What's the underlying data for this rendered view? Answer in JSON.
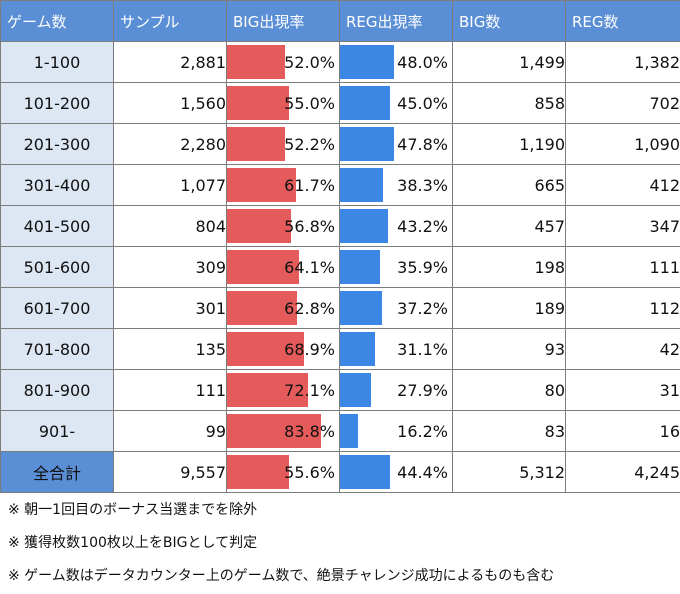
{
  "headers": [
    "ゲーム数",
    "サンプル",
    "BIG出現率",
    "REG出現率",
    "BIG数",
    "REG数"
  ],
  "colors": {
    "header_bg": "#5a8fd6",
    "range_bg": "#dde6f3",
    "big_bar": "#e55b5b",
    "reg_bar": "#3c86e4"
  },
  "rows": [
    {
      "range": "1-100",
      "samples": "2,881",
      "big_rate": "52.0%",
      "reg_rate": "48.0%",
      "big_count": "1,499",
      "reg_count": "1,382",
      "big_pct": 52.0,
      "reg_pct": 48.0
    },
    {
      "range": "101-200",
      "samples": "1,560",
      "big_rate": "55.0%",
      "reg_rate": "45.0%",
      "big_count": "858",
      "reg_count": "702",
      "big_pct": 55.0,
      "reg_pct": 45.0
    },
    {
      "range": "201-300",
      "samples": "2,280",
      "big_rate": "52.2%",
      "reg_rate": "47.8%",
      "big_count": "1,190",
      "reg_count": "1,090",
      "big_pct": 52.2,
      "reg_pct": 47.8
    },
    {
      "range": "301-400",
      "samples": "1,077",
      "big_rate": "61.7%",
      "reg_rate": "38.3%",
      "big_count": "665",
      "reg_count": "412",
      "big_pct": 61.7,
      "reg_pct": 38.3
    },
    {
      "range": "401-500",
      "samples": "804",
      "big_rate": "56.8%",
      "reg_rate": "43.2%",
      "big_count": "457",
      "reg_count": "347",
      "big_pct": 56.8,
      "reg_pct": 43.2
    },
    {
      "range": "501-600",
      "samples": "309",
      "big_rate": "64.1%",
      "reg_rate": "35.9%",
      "big_count": "198",
      "reg_count": "111",
      "big_pct": 64.1,
      "reg_pct": 35.9
    },
    {
      "range": "601-700",
      "samples": "301",
      "big_rate": "62.8%",
      "reg_rate": "37.2%",
      "big_count": "189",
      "reg_count": "112",
      "big_pct": 62.8,
      "reg_pct": 37.2
    },
    {
      "range": "701-800",
      "samples": "135",
      "big_rate": "68.9%",
      "reg_rate": "31.1%",
      "big_count": "93",
      "reg_count": "42",
      "big_pct": 68.9,
      "reg_pct": 31.1
    },
    {
      "range": "801-900",
      "samples": "111",
      "big_rate": "72.1%",
      "reg_rate": "27.9%",
      "big_count": "80",
      "reg_count": "31",
      "big_pct": 72.1,
      "reg_pct": 27.9
    },
    {
      "range": "901-",
      "samples": "99",
      "big_rate": "83.8%",
      "reg_rate": "16.2%",
      "big_count": "83",
      "reg_count": "16",
      "big_pct": 83.8,
      "reg_pct": 16.2
    }
  ],
  "total": {
    "label": "全合計",
    "samples": "9,557",
    "big_rate": "55.6%",
    "reg_rate": "44.4%",
    "big_count": "5,312",
    "reg_count": "4,245",
    "big_pct": 55.6,
    "reg_pct": 44.4
  },
  "notes": [
    "※ 朝一1回目のボーナス当選までを除外",
    "※ 獲得枚数100枚以上をBIGとして判定",
    "※ ゲーム数はデータカウンター上のゲーム数で、絶景チャレンジ成功によるものも含む"
  ]
}
